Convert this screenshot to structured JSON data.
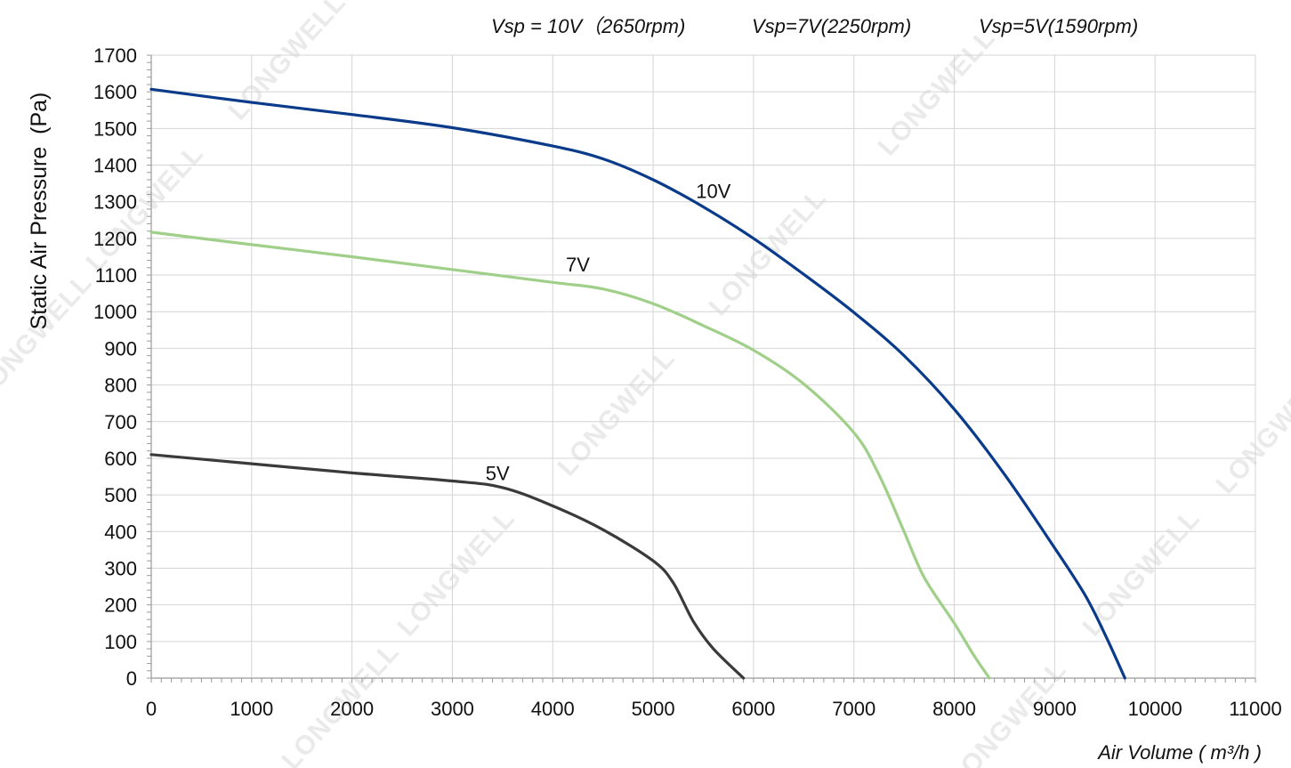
{
  "chart_data": {
    "type": "line",
    "header": [
      "Vsp = 10V（2650rpm)",
      "Vsp=7V(2250rpm)",
      "Vsp=5V(1590rpm)"
    ],
    "xlabel": "Air Volume ( m³/h )",
    "ylabel": "Static Air Pressure  (Pa)",
    "xlim": [
      0,
      11000
    ],
    "ylim": [
      0,
      1700
    ],
    "x_ticks": [
      0,
      1000,
      2000,
      3000,
      4000,
      5000,
      6000,
      7000,
      8000,
      9000,
      10000,
      11000
    ],
    "y_ticks": [
      0,
      100,
      200,
      300,
      400,
      500,
      600,
      700,
      800,
      900,
      1000,
      1100,
      1200,
      1300,
      1400,
      1500,
      1600,
      1700
    ],
    "grid": true,
    "watermark": "LONGWELL",
    "series": [
      {
        "name": "10V",
        "color": "#0a3a8a",
        "points": [
          [
            0,
            1607
          ],
          [
            1000,
            1571
          ],
          [
            2000,
            1538
          ],
          [
            3000,
            1502
          ],
          [
            4000,
            1452
          ],
          [
            4500,
            1417
          ],
          [
            5000,
            1360
          ],
          [
            5500,
            1286
          ],
          [
            6000,
            1200
          ],
          [
            6500,
            1102
          ],
          [
            7000,
            998
          ],
          [
            7500,
            880
          ],
          [
            8000,
            734
          ],
          [
            8500,
            556
          ],
          [
            9000,
            355
          ],
          [
            9300,
            228
          ],
          [
            9500,
            120
          ],
          [
            9700,
            0
          ]
        ]
      },
      {
        "name": "7V",
        "color": "#9fcf88",
        "points": [
          [
            0,
            1217
          ],
          [
            1000,
            1183
          ],
          [
            2000,
            1150
          ],
          [
            3000,
            1115
          ],
          [
            4000,
            1080
          ],
          [
            4500,
            1062
          ],
          [
            5000,
            1022
          ],
          [
            5500,
            962
          ],
          [
            6000,
            895
          ],
          [
            6500,
            803
          ],
          [
            7000,
            670
          ],
          [
            7250,
            555
          ],
          [
            7500,
            400
          ],
          [
            7700,
            275
          ],
          [
            8000,
            150
          ],
          [
            8200,
            60
          ],
          [
            8350,
            0
          ]
        ]
      },
      {
        "name": "5V",
        "color": "#3a3a3a",
        "points": [
          [
            0,
            610
          ],
          [
            1000,
            585
          ],
          [
            2000,
            560
          ],
          [
            3000,
            538
          ],
          [
            3500,
            520
          ],
          [
            4000,
            470
          ],
          [
            4500,
            405
          ],
          [
            5000,
            320
          ],
          [
            5200,
            260
          ],
          [
            5400,
            155
          ],
          [
            5600,
            80
          ],
          [
            5900,
            0
          ]
        ]
      }
    ],
    "annotations": [
      {
        "text": "10V",
        "x": 5600,
        "y": 1310
      },
      {
        "text": "7V",
        "x": 4250,
        "y": 1110
      },
      {
        "text": "5V",
        "x": 3450,
        "y": 540
      }
    ]
  }
}
